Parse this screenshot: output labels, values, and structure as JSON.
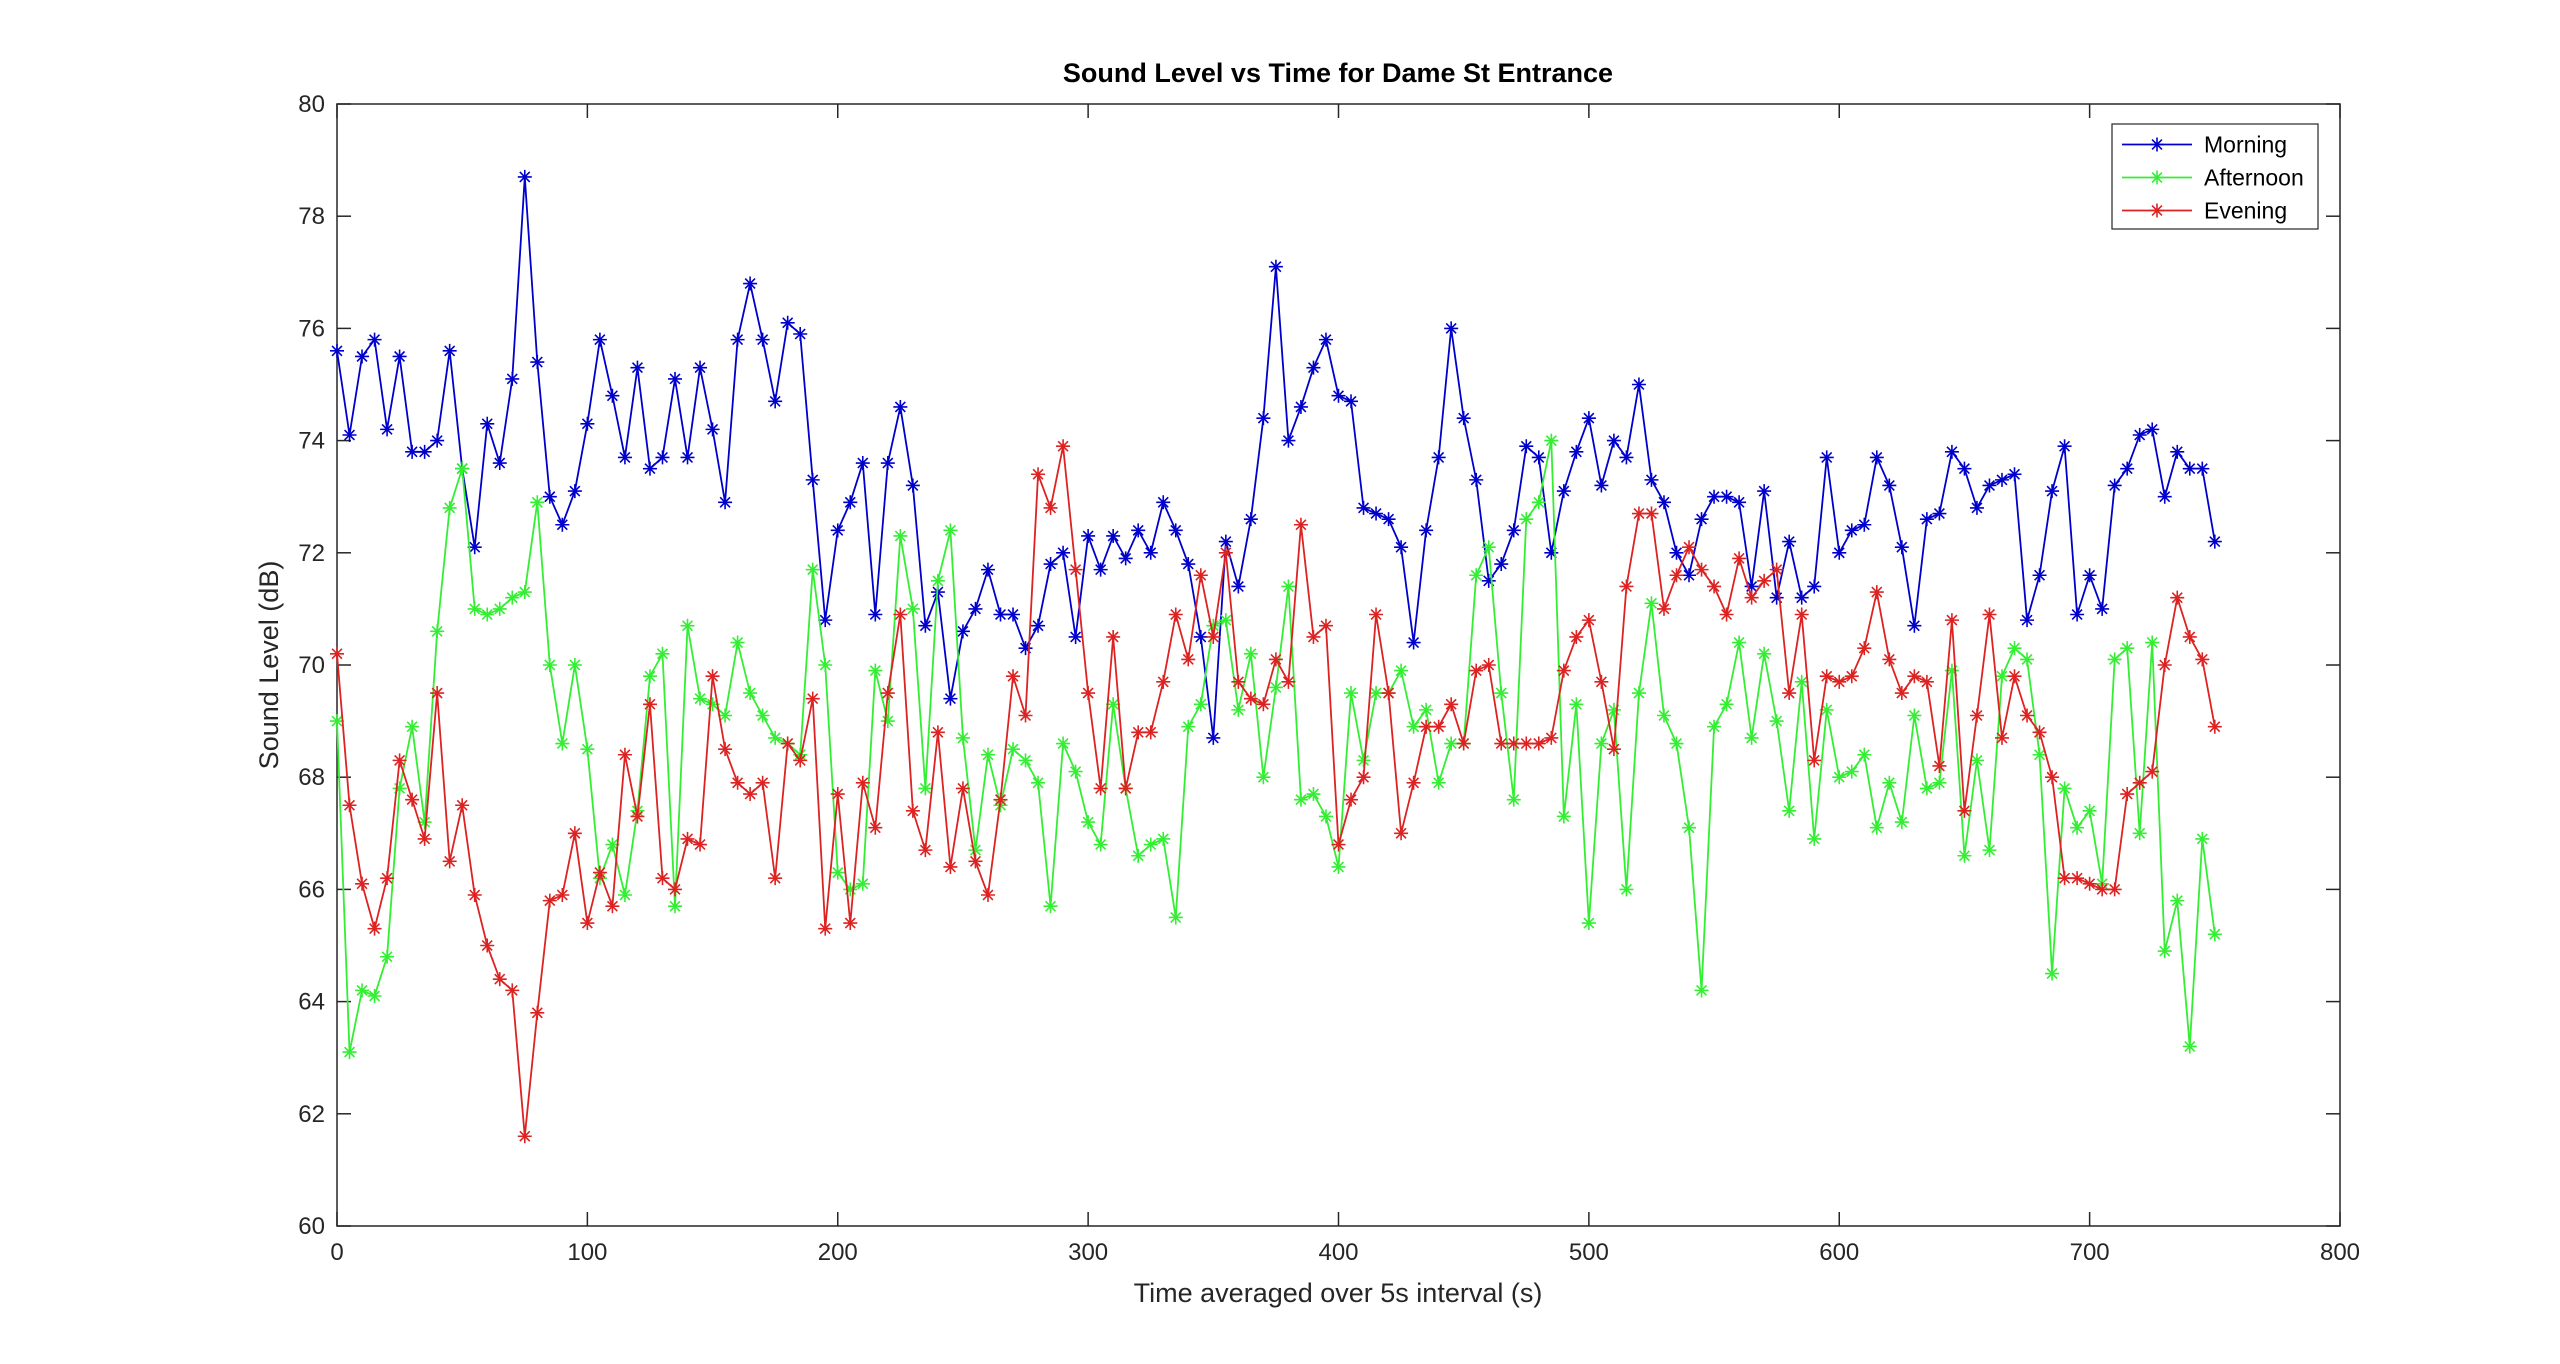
{
  "chart_data": {
    "type": "line",
    "title": "Sound Level vs Time for Dame St Entrance",
    "xlabel": "Time averaged over 5s interval (s)",
    "ylabel": "Sound Level (dB)",
    "x": [
      0,
      5,
      10,
      15,
      20,
      25,
      30,
      35,
      40,
      45,
      50,
      55,
      60,
      65,
      70,
      75,
      80,
      85,
      90,
      95,
      100,
      105,
      110,
      115,
      120,
      125,
      130,
      135,
      140,
      145,
      150,
      155,
      160,
      165,
      170,
      175,
      180,
      185,
      190,
      195,
      200,
      205,
      210,
      215,
      220,
      225,
      230,
      235,
      240,
      245,
      250,
      255,
      260,
      265,
      270,
      275,
      280,
      285,
      290,
      295,
      300,
      305,
      310,
      315,
      320,
      325,
      330,
      335,
      340,
      345,
      350,
      355,
      360,
      365,
      370,
      375,
      380,
      385,
      390,
      395,
      400,
      405,
      410,
      415,
      420,
      425,
      430,
      435,
      440,
      445,
      450,
      455,
      460,
      465,
      470,
      475,
      480,
      485,
      490,
      495,
      500,
      505,
      510,
      515,
      520,
      525,
      530,
      535,
      540,
      545,
      550,
      555,
      560,
      565,
      570,
      575,
      580,
      585,
      590,
      595,
      600,
      605,
      610,
      615,
      620,
      625,
      630,
      635,
      640,
      645,
      650,
      655,
      660,
      665,
      670,
      675,
      680,
      685,
      690,
      695,
      700,
      705,
      710,
      715,
      720,
      725,
      730,
      735,
      740,
      745,
      750
    ],
    "series": [
      {
        "name": "Morning",
        "color": "#0000cc",
        "values": [
          75.6,
          74.1,
          75.5,
          75.8,
          74.2,
          75.5,
          73.8,
          73.8,
          74.0,
          75.6,
          73.5,
          72.1,
          74.3,
          73.6,
          75.1,
          78.7,
          75.4,
          73.0,
          72.5,
          73.1,
          74.3,
          75.8,
          74.8,
          73.7,
          75.3,
          73.5,
          73.7,
          75.1,
          73.7,
          75.3,
          74.2,
          72.9,
          75.8,
          76.8,
          75.8,
          74.7,
          76.1,
          75.9,
          73.3,
          70.8,
          72.4,
          72.9,
          73.6,
          70.9,
          73.6,
          74.6,
          73.2,
          70.7,
          71.3,
          69.4,
          70.6,
          71.0,
          71.7,
          70.9,
          70.9,
          70.3,
          70.7,
          71.8,
          72.0,
          70.5,
          72.3,
          71.7,
          72.3,
          71.9,
          72.4,
          72.0,
          72.9,
          72.4,
          71.8,
          70.5,
          68.7,
          72.2,
          71.4,
          72.6,
          74.4,
          77.1,
          74.0,
          74.6,
          75.3,
          75.8,
          74.8,
          74.7,
          72.8,
          72.7,
          72.6,
          72.1,
          70.4,
          72.4,
          73.7,
          76.0,
          74.4,
          73.3,
          71.5,
          71.8,
          72.4,
          73.9,
          73.7,
          72.0,
          73.1,
          73.8,
          74.4,
          73.2,
          74.0,
          73.7,
          75.0,
          73.3,
          72.9,
          72.0,
          71.6,
          72.6,
          73.0,
          73.0,
          72.9,
          71.4,
          73.1,
          71.2,
          72.2,
          71.2,
          71.4,
          73.7,
          72.0,
          72.4,
          72.5,
          73.7,
          73.2,
          72.1,
          70.7,
          72.6,
          72.7,
          73.8,
          73.5,
          72.8,
          73.2,
          73.3,
          73.4,
          70.8,
          71.6,
          73.1,
          73.9,
          70.9,
          71.6,
          71.0,
          73.2,
          73.5,
          74.1,
          74.2,
          73.0,
          73.8,
          73.5,
          73.5,
          72.2
        ]
      },
      {
        "name": "Afternoon",
        "color": "#33ee33",
        "values": [
          69.0,
          63.1,
          64.2,
          64.1,
          64.8,
          67.8,
          68.9,
          67.2,
          70.6,
          72.8,
          73.5,
          71.0,
          70.9,
          71.0,
          71.2,
          71.3,
          72.9,
          70.0,
          68.6,
          70.0,
          68.5,
          66.2,
          66.8,
          65.9,
          67.4,
          69.8,
          70.2,
          65.7,
          70.7,
          69.4,
          69.3,
          69.1,
          70.4,
          69.5,
          69.1,
          68.7,
          68.6,
          68.4,
          71.7,
          70.0,
          66.3,
          66.0,
          66.1,
          69.9,
          69.0,
          72.3,
          71.0,
          67.8,
          71.5,
          72.4,
          68.7,
          66.7,
          68.4,
          67.5,
          68.5,
          68.3,
          67.9,
          65.7,
          68.6,
          68.1,
          67.2,
          66.8,
          69.3,
          67.8,
          66.6,
          66.8,
          66.9,
          65.5,
          68.9,
          69.3,
          70.7,
          70.8,
          69.2,
          70.2,
          68.0,
          69.6,
          71.4,
          67.6,
          67.7,
          67.3,
          66.4,
          69.5,
          68.3,
          69.5,
          69.5,
          69.9,
          68.9,
          69.2,
          67.9,
          68.6,
          68.6,
          71.6,
          72.1,
          69.5,
          67.6,
          72.6,
          72.9,
          74.0,
          67.3,
          69.3,
          65.4,
          68.6,
          69.2,
          66.0,
          69.5,
          71.1,
          69.1,
          68.6,
          67.1,
          64.2,
          68.9,
          69.3,
          70.4,
          68.7,
          70.2,
          69.0,
          67.4,
          69.7,
          66.9,
          69.2,
          68.0,
          68.1,
          68.4,
          67.1,
          67.9,
          67.2,
          69.1,
          67.8,
          67.9,
          69.9,
          66.6,
          68.3,
          66.7,
          69.8,
          70.3,
          70.1,
          68.4,
          64.5,
          67.8,
          67.1,
          67.4,
          66.1,
          70.1,
          70.3,
          67.0,
          70.4,
          64.9,
          65.8,
          63.2,
          66.9,
          65.2
        ]
      },
      {
        "name": "Evening",
        "color": "#dd2222",
        "values": [
          70.2,
          67.5,
          66.1,
          65.3,
          66.2,
          68.3,
          67.6,
          66.9,
          69.5,
          66.5,
          67.5,
          65.9,
          65.0,
          64.4,
          64.2,
          61.6,
          63.8,
          65.8,
          65.9,
          67.0,
          65.4,
          66.3,
          65.7,
          68.4,
          67.3,
          69.3,
          66.2,
          66.0,
          66.9,
          66.8,
          69.8,
          68.5,
          67.9,
          67.7,
          67.9,
          66.2,
          68.6,
          68.3,
          69.4,
          65.3,
          67.7,
          65.4,
          67.9,
          67.1,
          69.5,
          70.9,
          67.4,
          66.7,
          68.8,
          66.4,
          67.8,
          66.5,
          65.9,
          67.6,
          69.8,
          69.1,
          73.4,
          72.8,
          73.9,
          71.7,
          69.5,
          67.8,
          70.5,
          67.8,
          68.8,
          68.8,
          69.7,
          70.9,
          70.1,
          71.6,
          70.5,
          72.0,
          69.7,
          69.4,
          69.3,
          70.1,
          69.7,
          72.5,
          70.5,
          70.7,
          66.8,
          67.6,
          68.0,
          70.9,
          69.5,
          67.0,
          67.9,
          68.9,
          68.9,
          69.3,
          68.6,
          69.9,
          70.0,
          68.6,
          68.6,
          68.6,
          68.6,
          68.7,
          69.9,
          70.5,
          70.8,
          69.7,
          68.5,
          71.4,
          72.7,
          72.7,
          71.0,
          71.6,
          72.1,
          71.7,
          71.4,
          70.9,
          71.9,
          71.2,
          71.5,
          71.7,
          69.5,
          70.9,
          68.3,
          69.8,
          69.7,
          69.8,
          70.3,
          71.3,
          70.1,
          69.5,
          69.8,
          69.7,
          68.2,
          70.8,
          67.4,
          69.1,
          70.9,
          68.7,
          69.8,
          69.1,
          68.8,
          68.0,
          66.2,
          66.2,
          66.1,
          66.0,
          66.0,
          67.7,
          67.9,
          68.1,
          70.0,
          71.2,
          70.5,
          70.1,
          68.9
        ]
      }
    ],
    "xlim": [
      0,
      800
    ],
    "xticks": [
      0,
      100,
      200,
      300,
      400,
      500,
      600,
      700,
      800
    ],
    "ylim": [
      60,
      80
    ],
    "yticks": [
      60,
      62,
      64,
      66,
      68,
      70,
      72,
      74,
      76,
      78,
      80
    ],
    "grid": false,
    "legend": "upper right"
  }
}
